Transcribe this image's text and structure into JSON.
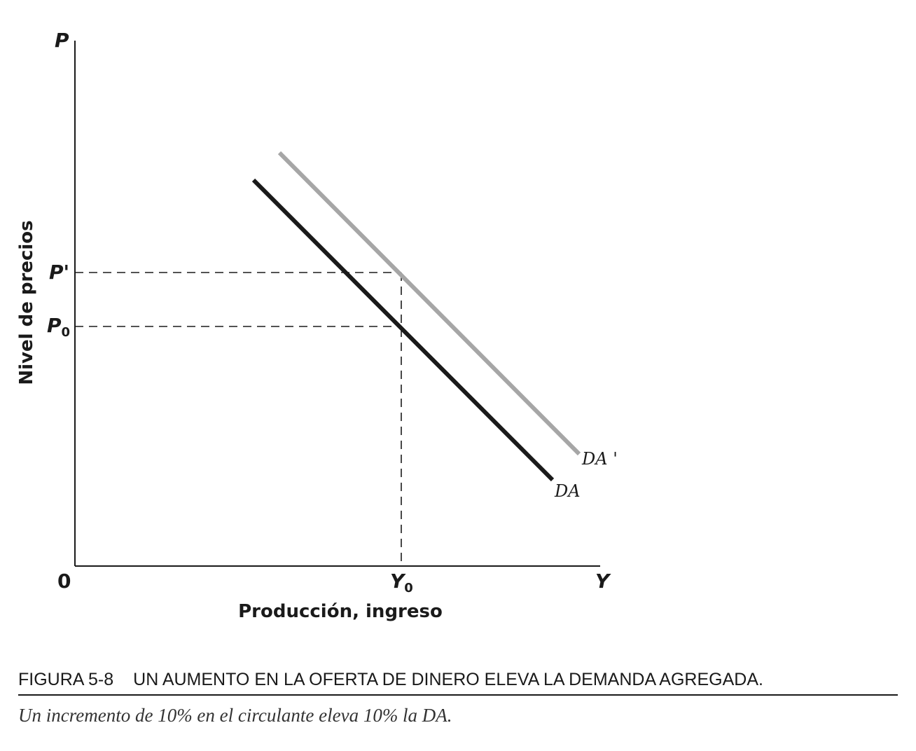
{
  "axes": {
    "y_letter": "P",
    "x_letter": "Y",
    "origin": "0",
    "y_title": "Nivel de precios",
    "x_title": "Producción, ingreso"
  },
  "ticks": {
    "p_prime": "P'",
    "p0_base": "P",
    "p0_sub": "0",
    "y0_base": "Y",
    "y0_sub": "0"
  },
  "curves": {
    "da": {
      "label": "DA",
      "color": "#1a1a1a"
    },
    "da_prime": {
      "label": "DA '",
      "color": "#a6a6a6"
    }
  },
  "caption": {
    "number": "FIGURA 5-8",
    "title": "UN AUMENTO EN LA OFERTA DE DINERO ELEVA LA DEMANDA AGREGADA.",
    "text": "Un incremento de 10% en el circulante eleva 10% la DA."
  }
}
